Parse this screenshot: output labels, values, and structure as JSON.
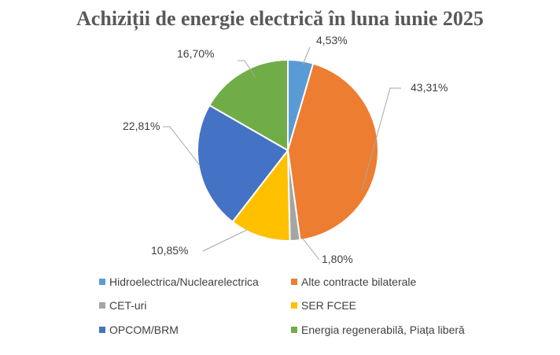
{
  "chart_data": {
    "type": "pie",
    "title": "Achiziții de energie electrică în luna iunie 2025",
    "slices": [
      {
        "name": "Hidroelectrica/Nuclearelectrica",
        "value": 4.53,
        "label": "4,53%",
        "color": "#5B9BD5"
      },
      {
        "name": "Alte contracte bilaterale",
        "value": 43.31,
        "label": "43,31%",
        "color": "#ED7D31"
      },
      {
        "name": "CET-uri",
        "value": 1.8,
        "label": "1,80%",
        "color": "#A5A5A5"
      },
      {
        "name": "SER FCEE",
        "value": 10.85,
        "label": "10,85%",
        "color": "#FFC000"
      },
      {
        "name": "OPCOM/BRM",
        "value": 22.81,
        "label": "22,81%",
        "color": "#4472C4"
      },
      {
        "name": "Energia regenerabilă, Piața liberă",
        "value": 16.7,
        "label": "16,70%",
        "color": "#70AD47"
      }
    ],
    "legend_position": "bottom",
    "data_labels": "outside-with-leader-lines"
  }
}
